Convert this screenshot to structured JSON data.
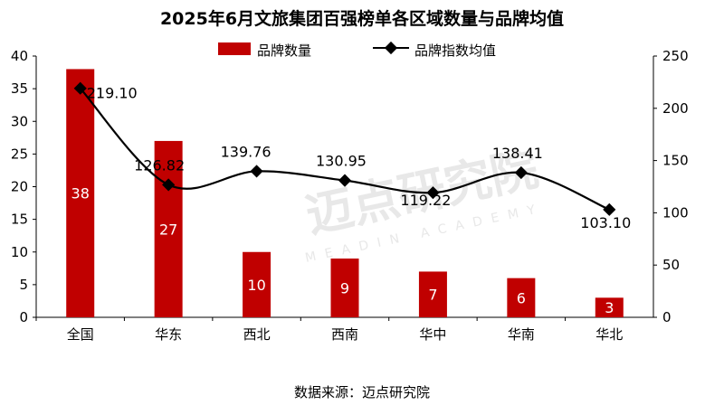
{
  "chart_data": {
    "type": "bar",
    "title": "2025年6月文旅集团百强榜单各区域数量与品牌均值",
    "categories": [
      "全国",
      "华东",
      "西北",
      "西南",
      "华中",
      "华南",
      "华北"
    ],
    "series": [
      {
        "name": "品牌数量",
        "type": "bar",
        "axis": "left",
        "color": "#c00000",
        "values": [
          38,
          27,
          10,
          9,
          7,
          6,
          3
        ]
      },
      {
        "name": "品牌指数均值",
        "type": "line",
        "axis": "right",
        "color": "#000000",
        "values": [
          219.1,
          126.82,
          139.76,
          130.95,
          119.22,
          138.41,
          103.1
        ]
      }
    ],
    "left_axis": {
      "ylim": [
        0,
        40
      ],
      "ticks": [
        "0",
        "5",
        "10",
        "15",
        "20",
        "25",
        "30",
        "35",
        "40"
      ]
    },
    "right_axis": {
      "ylim": [
        0,
        250
      ],
      "ticks": [
        "0",
        "50",
        "100",
        "150",
        "200",
        "250"
      ]
    },
    "bar_labels": [
      "38",
      "27",
      "10",
      "9",
      "7",
      "6",
      "3"
    ],
    "line_labels": [
      "219.10",
      "126.82",
      "139.76",
      "130.95",
      "119.22",
      "138.41",
      "103.10"
    ],
    "legend_position": "top-center",
    "grid": false
  },
  "watermark": {
    "text": "迈点研究院",
    "subtext": "MEADIN ACADEMY"
  },
  "source": "数据来源：迈点研究院"
}
